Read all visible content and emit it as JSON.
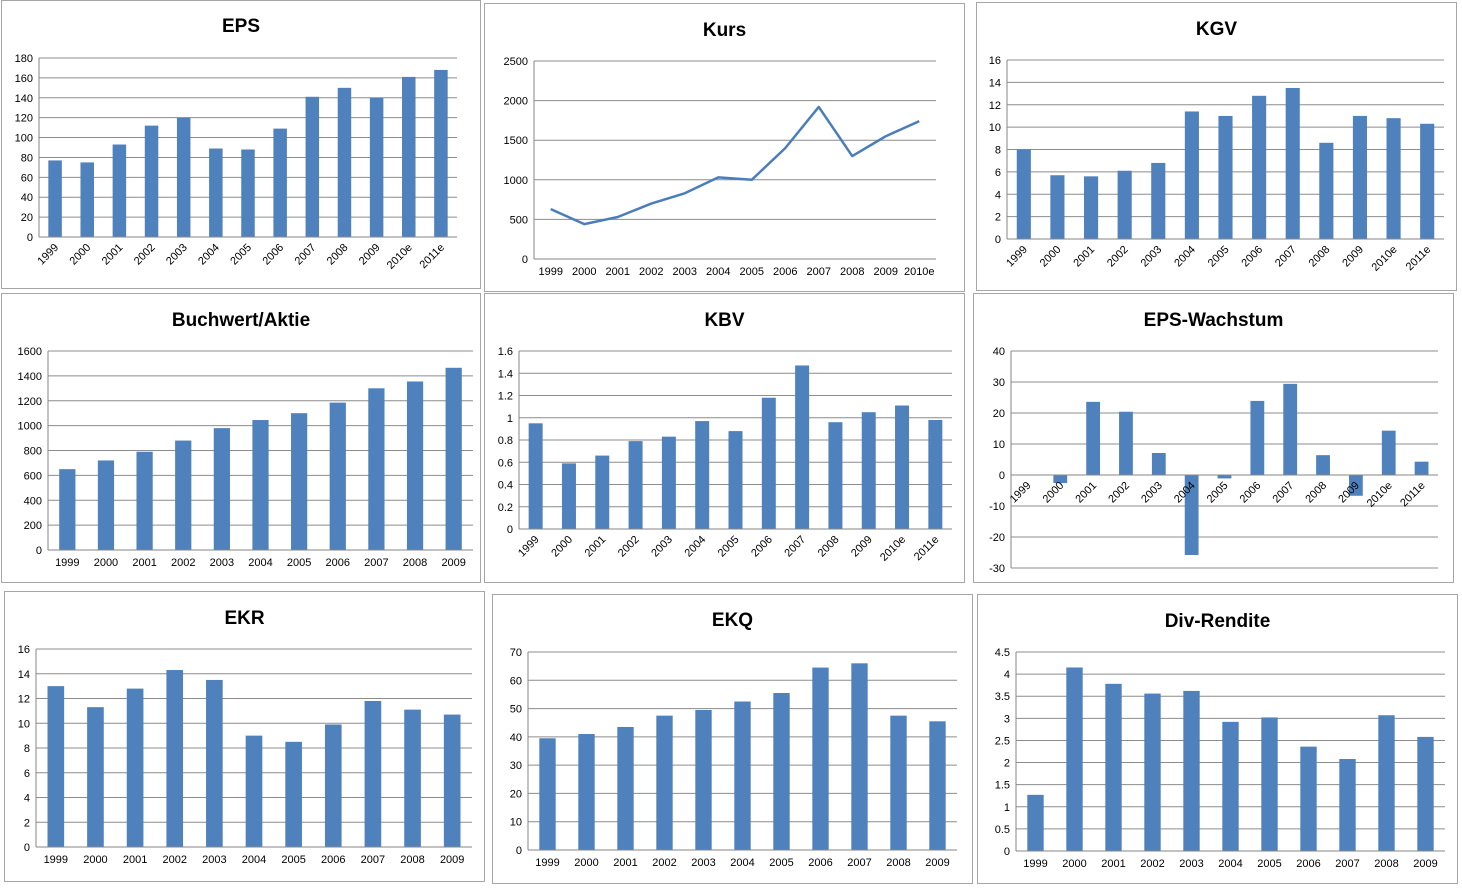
{
  "colors": {
    "bar": "#4f81bd",
    "line": "#4a7ebb",
    "grid": "#8c8c8c",
    "axis": "#868686"
  },
  "chart_data": [
    {
      "id": "eps",
      "type": "bar",
      "title": "EPS",
      "categories": [
        "1999",
        "2000",
        "2001",
        "2002",
        "2003",
        "2004",
        "2005",
        "2006",
        "2007",
        "2008",
        "2009",
        "2010e",
        "2011e"
      ],
      "values": [
        77,
        75,
        93,
        112,
        120,
        89,
        88,
        109,
        141,
        150,
        140,
        161,
        168
      ],
      "ylim": [
        0,
        180
      ],
      "ystep": 20,
      "rotated_labels": true
    },
    {
      "id": "kurs",
      "type": "line",
      "title": "Kurs",
      "categories": [
        "1999",
        "2000",
        "2001",
        "2002",
        "2003",
        "2004",
        "2005",
        "2006",
        "2007",
        "2008",
        "2009",
        "2010e"
      ],
      "values": [
        630,
        440,
        530,
        700,
        830,
        1030,
        1000,
        1400,
        1920,
        1300,
        1550,
        1740
      ],
      "ylim": [
        0,
        2500
      ],
      "ystep": 500,
      "rotated_labels": false
    },
    {
      "id": "kgv",
      "type": "bar",
      "title": "KGV",
      "categories": [
        "1999",
        "2000",
        "2001",
        "2002",
        "2003",
        "2004",
        "2005",
        "2006",
        "2007",
        "2008",
        "2009",
        "2010e",
        "2011e"
      ],
      "values": [
        8.0,
        5.7,
        5.6,
        6.1,
        6.8,
        11.4,
        11.0,
        12.8,
        13.5,
        8.6,
        11.0,
        10.8,
        10.3
      ],
      "ylim": [
        0,
        16
      ],
      "ystep": 2,
      "rotated_labels": true
    },
    {
      "id": "buchwert",
      "type": "bar",
      "title": "Buchwert/Aktie",
      "categories": [
        "1999",
        "2000",
        "2001",
        "2002",
        "2003",
        "2004",
        "2005",
        "2006",
        "2007",
        "2008",
        "2009"
      ],
      "values": [
        650,
        720,
        790,
        880,
        980,
        1045,
        1100,
        1185,
        1300,
        1355,
        1465
      ],
      "ylim": [
        0,
        1600
      ],
      "ystep": 200,
      "rotated_labels": false
    },
    {
      "id": "kbv",
      "type": "bar",
      "title": "KBV",
      "categories": [
        "1999",
        "2000",
        "2001",
        "2002",
        "2003",
        "2004",
        "2005",
        "2006",
        "2007",
        "2008",
        "2009",
        "2010e",
        "2011e"
      ],
      "values": [
        0.95,
        0.59,
        0.66,
        0.79,
        0.83,
        0.97,
        0.88,
        1.18,
        1.47,
        0.96,
        1.05,
        1.11,
        0.98
      ],
      "ylim": [
        0,
        1.6
      ],
      "ystep": 0.2,
      "rotated_labels": true
    },
    {
      "id": "epsw",
      "type": "bar",
      "title": "EPS-Wachstum",
      "categories": [
        "1999",
        "2000",
        "2001",
        "2002",
        "2003",
        "2004",
        "2005",
        "2006",
        "2007",
        "2008",
        "2009",
        "2010e",
        "2011e"
      ],
      "values": [
        0,
        -2.6,
        23.6,
        20.4,
        7.1,
        -25.8,
        -1.1,
        23.9,
        29.4,
        6.4,
        -6.7,
        14.3,
        4.3
      ],
      "ylim": [
        -30,
        40
      ],
      "ystep": 10,
      "rotated_labels": true
    },
    {
      "id": "ekr",
      "type": "bar",
      "title": "EKR",
      "categories": [
        "1999",
        "2000",
        "2001",
        "2002",
        "2003",
        "2004",
        "2005",
        "2006",
        "2007",
        "2008",
        "2009"
      ],
      "values": [
        13.0,
        11.3,
        12.8,
        14.3,
        13.5,
        9.0,
        8.5,
        9.9,
        11.8,
        11.1,
        10.7
      ],
      "ylim": [
        0,
        16
      ],
      "ystep": 2,
      "rotated_labels": false
    },
    {
      "id": "ekq",
      "type": "bar",
      "title": "EKQ",
      "categories": [
        "1999",
        "2000",
        "2001",
        "2002",
        "2003",
        "2004",
        "2005",
        "2006",
        "2007",
        "2008",
        "2009"
      ],
      "values": [
        39.5,
        41.0,
        43.5,
        47.5,
        49.5,
        52.5,
        55.5,
        64.5,
        66.0,
        47.5,
        45.5
      ],
      "ylim": [
        0,
        70
      ],
      "ystep": 10,
      "rotated_labels": false
    },
    {
      "id": "div",
      "type": "bar",
      "title": "Div-Rendite",
      "categories": [
        "1999",
        "2000",
        "2001",
        "2002",
        "2003",
        "2004",
        "2005",
        "2006",
        "2007",
        "2008",
        "2009"
      ],
      "values": [
        1.27,
        4.15,
        3.78,
        3.56,
        3.62,
        2.92,
        3.02,
        2.36,
        2.08,
        3.07,
        2.58
      ],
      "ylim": [
        0,
        4.5
      ],
      "ystep": 0.5,
      "rotated_labels": false
    }
  ]
}
